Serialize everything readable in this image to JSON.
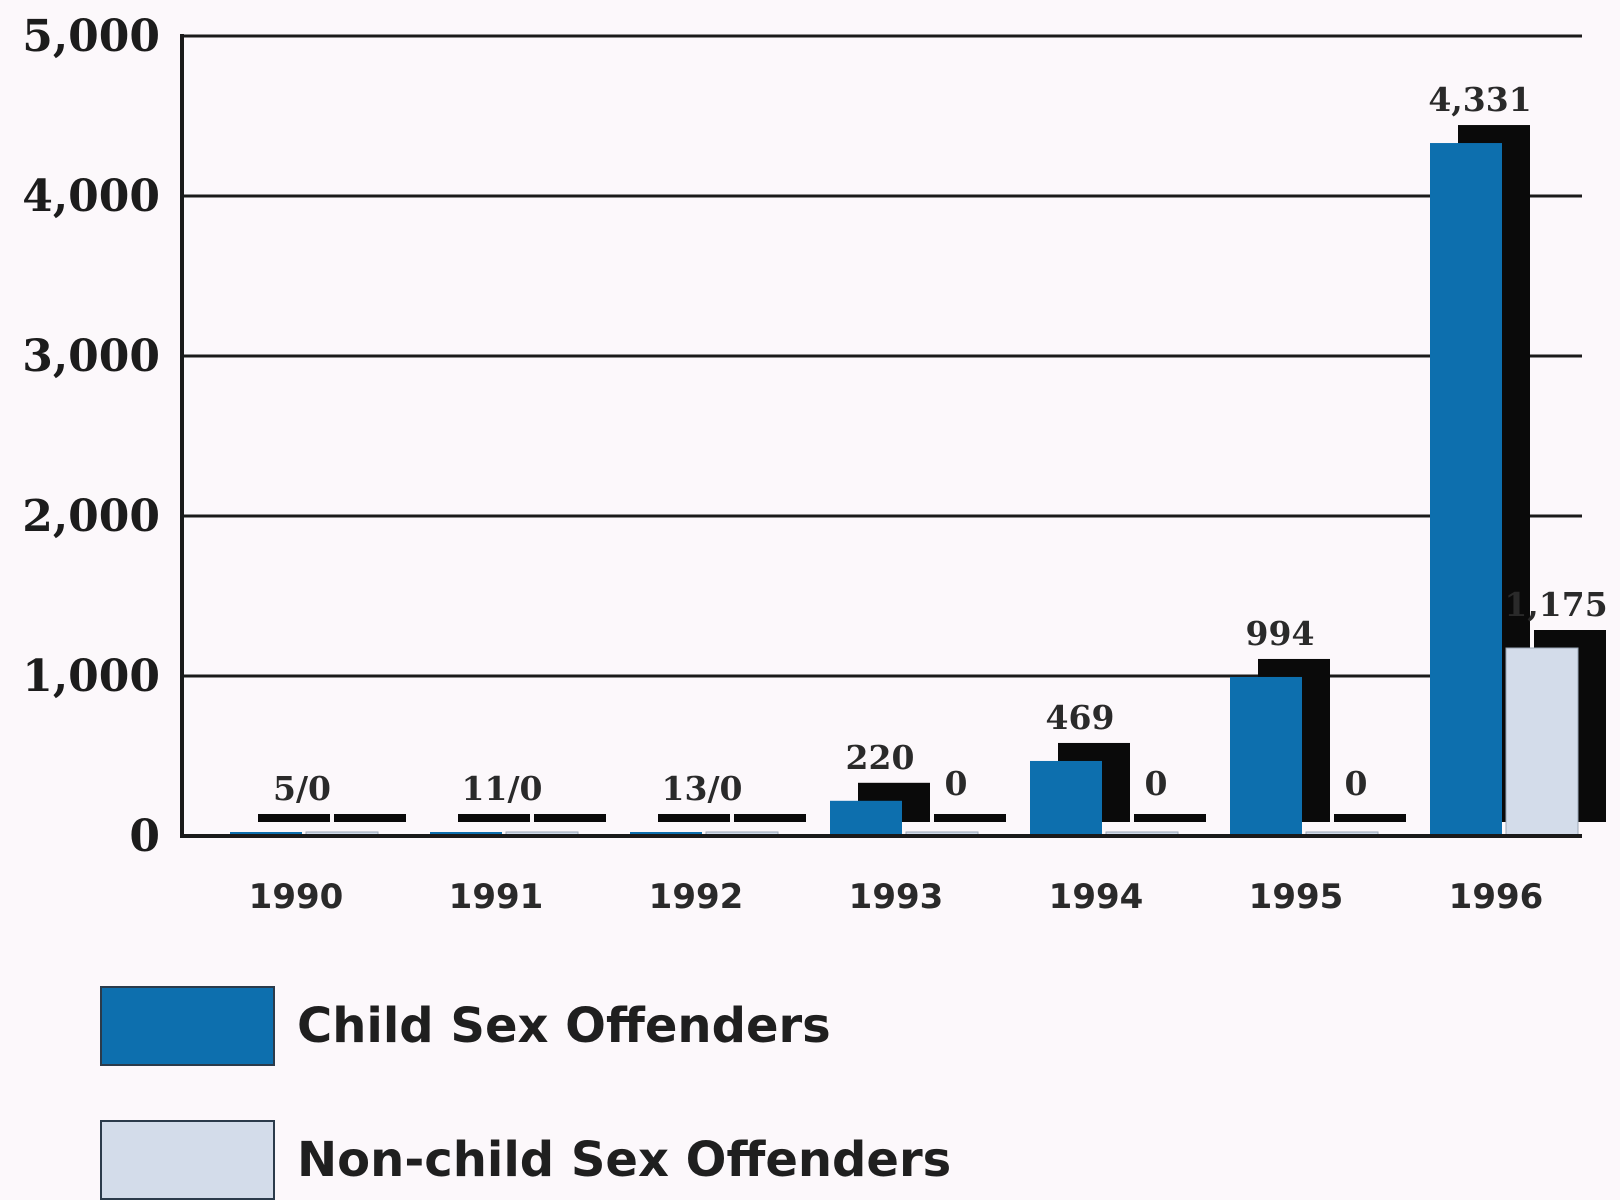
{
  "chart_data": {
    "type": "bar",
    "categories": [
      "1990",
      "1991",
      "1992",
      "1993",
      "1994",
      "1995",
      "1996"
    ],
    "series": [
      {
        "name": "Child Sex Offenders",
        "values": [
          5,
          11,
          13,
          220,
          469,
          994,
          4331
        ]
      },
      {
        "name": "Non-child Sex Offenders",
        "values": [
          0,
          0,
          0,
          0,
          0,
          0,
          1175
        ]
      }
    ],
    "data_labels": [
      "5/0",
      "11/0",
      "13/0",
      "220",
      "469",
      "994",
      "4,331"
    ],
    "data_labels_series2": [
      "",
      "",
      "",
      "0",
      "0",
      "0",
      "1,175"
    ],
    "yticks": [
      "0",
      "1,000",
      "2,000",
      "3,000",
      "4,000",
      "5,000"
    ],
    "ylim": [
      0,
      5000
    ],
    "grid": true,
    "legend_position": "bottom-left",
    "colors": {
      "child": "#0d6fae",
      "nonchild": "#d3dcea",
      "shadow": "#0a0a0a",
      "grid": "#1a1a1a"
    }
  },
  "legend": {
    "child_label": "Child Sex Offenders",
    "nonchild_label": "Non-child Sex Offenders"
  }
}
